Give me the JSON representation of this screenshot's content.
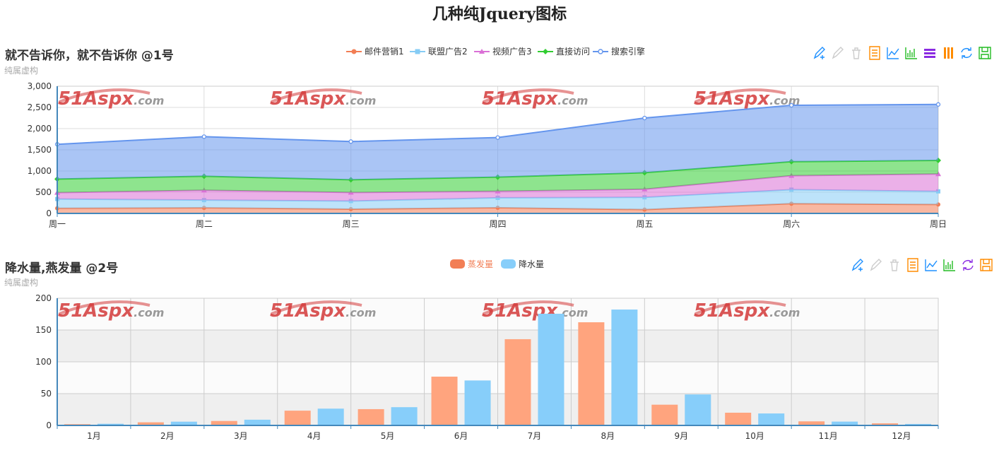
{
  "page": {
    "title": "几种纯Jquery图标"
  },
  "watermark": {
    "main": "51Aspx",
    "suffix": ".com",
    "color": "#d43a3a"
  },
  "chart_data": [
    {
      "type": "area",
      "title": "就不告诉你，就不告诉你 @1号",
      "subtitle": "纯属虚构",
      "stacked": true,
      "categories": [
        "周一",
        "周二",
        "周三",
        "周四",
        "周五",
        "周六",
        "周日"
      ],
      "ylim": [
        0,
        3000
      ],
      "yticks": [
        "0",
        "500",
        "1,000",
        "1,500",
        "2,000",
        "2,500",
        "3,000"
      ],
      "legend_position": "top-center",
      "grid": true,
      "series": [
        {
          "name": "邮件营销1",
          "color": "#f27e55",
          "values": [
            120,
            132,
            101,
            134,
            90,
            230,
            210
          ]
        },
        {
          "name": "联盟广告2",
          "color": "#86ccf5",
          "values": [
            220,
            182,
            191,
            234,
            290,
            330,
            310
          ]
        },
        {
          "name": "视频广告3",
          "color": "#da70d6",
          "values": [
            150,
            232,
            201,
            154,
            190,
            330,
            410
          ]
        },
        {
          "name": "直接访问",
          "color": "#32cd32",
          "values": [
            320,
            332,
            301,
            334,
            390,
            330,
            320
          ]
        },
        {
          "name": "搜索引擎",
          "color": "#6495ed",
          "values": [
            820,
            932,
            901,
            934,
            1290,
            1330,
            1320
          ]
        }
      ]
    },
    {
      "type": "bar",
      "title": "降水量,燕发量 @2号",
      "subtitle": "纯属虚构",
      "categories": [
        "1月",
        "2月",
        "3月",
        "4月",
        "5月",
        "6月",
        "7月",
        "8月",
        "9月",
        "10月",
        "11月",
        "12月"
      ],
      "ylim": [
        0,
        200
      ],
      "yticks": [
        "0",
        "50",
        "100",
        "150",
        "200"
      ],
      "legend_position": "top-center",
      "grid": true,
      "series": [
        {
          "name": "蒸发量",
          "color": "#ffa47e",
          "legend_color": "#f27e55",
          "values": [
            2.0,
            4.9,
            7.0,
            23.2,
            25.6,
            76.7,
            135.6,
            162.2,
            32.6,
            20.0,
            6.4,
            3.3
          ]
        },
        {
          "name": "降水量",
          "color": "#87cefa",
          "legend_color": "#87cefa",
          "values": [
            2.6,
            5.9,
            9.0,
            26.4,
            28.7,
            70.7,
            175.6,
            182.2,
            48.7,
            18.8,
            6.0,
            2.3
          ]
        }
      ]
    }
  ],
  "toolbox1": [
    {
      "icon": "mark-icon",
      "color": "#1e90ff"
    },
    {
      "icon": "mark-undo-icon",
      "color": "#cccccc"
    },
    {
      "icon": "mark-clear-icon",
      "color": "#cccccc"
    },
    {
      "icon": "data-view-icon",
      "color": "#ff8c00"
    },
    {
      "icon": "line-chart-icon",
      "color": "#1e90ff"
    },
    {
      "icon": "bar-chart-icon",
      "color": "#22bb22"
    },
    {
      "icon": "stack-icon",
      "color": "#8a2be2"
    },
    {
      "icon": "tiled-icon",
      "color": "#ff8c00"
    },
    {
      "icon": "restore-icon",
      "color": "#1e90ff"
    },
    {
      "icon": "save-image-icon",
      "color": "#22bb22"
    }
  ],
  "toolbox2": [
    {
      "icon": "mark-icon",
      "color": "#1e90ff"
    },
    {
      "icon": "mark-undo-icon",
      "color": "#cccccc"
    },
    {
      "icon": "mark-clear-icon",
      "color": "#cccccc"
    },
    {
      "icon": "data-view-icon",
      "color": "#ff8c00"
    },
    {
      "icon": "line-chart-icon",
      "color": "#1e90ff"
    },
    {
      "icon": "bar-chart-icon",
      "color": "#22bb22"
    },
    {
      "icon": "restore-icon",
      "color": "#8a2be2"
    },
    {
      "icon": "save-image-icon",
      "color": "#ff8c00"
    }
  ]
}
